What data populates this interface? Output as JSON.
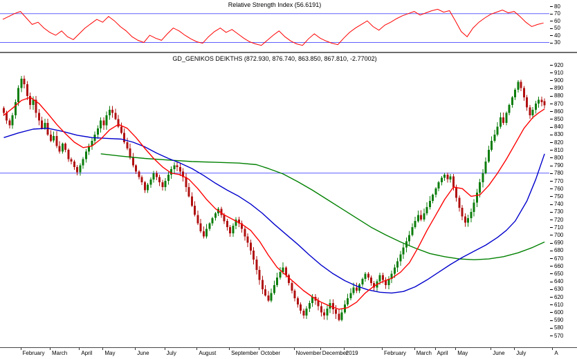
{
  "chart_data": [
    {
      "type": "line",
      "name": "rsi",
      "indicator": "Relative Strength Index",
      "current_value": 56.6191,
      "title_display": "Relative Strength Index (56.6191)",
      "color": "#ff0000",
      "threshold_color": "#6060ff",
      "thresholds": [
        70,
        30
      ],
      "ylim": [
        20,
        85
      ],
      "y_ticks": [
        80,
        70,
        60,
        50,
        40,
        30
      ],
      "x_step": 2,
      "legend_position": "none",
      "grid": false,
      "values": [
        62,
        66,
        70,
        73,
        64,
        55,
        58,
        50,
        44,
        40,
        46,
        38,
        34,
        42,
        50,
        56,
        62,
        58,
        66,
        60,
        52,
        46,
        38,
        33,
        30,
        40,
        36,
        33,
        42,
        50,
        46,
        40,
        35,
        31,
        29,
        38,
        45,
        50,
        44,
        48,
        42,
        36,
        31,
        28,
        26,
        33,
        40,
        46,
        38,
        32,
        28,
        26,
        35,
        42,
        36,
        32,
        29,
        27,
        36,
        44,
        50,
        55,
        60,
        52,
        47,
        54,
        58,
        63,
        67,
        70,
        73,
        68,
        71,
        74,
        76,
        72,
        74,
        60,
        45,
        38,
        50,
        58,
        64,
        69,
        72,
        75,
        71,
        73,
        66,
        58,
        52,
        55,
        57
      ]
    },
    {
      "type": "candlestick",
      "name": "price",
      "symbol": "GD_GENIKOS DEIKTHS",
      "title_display": "GD_GENIKOS DEIKTHS (872.930, 876.740, 863.850, 867.810, -2.77002)",
      "last_open": 872.93,
      "last_high": 876.74,
      "last_low": 863.85,
      "last_close": 867.81,
      "last_change": -2.77002,
      "up_color": "#0b7d0b",
      "down_color": "#b01010",
      "hline": 780,
      "hline_color": "#5a5aff",
      "ylim": [
        570,
        920
      ],
      "y_tick_step": 10,
      "grid": false,
      "closes": [
        858,
        848,
        842,
        855,
        872,
        890,
        902,
        895,
        880,
        868,
        875,
        858,
        848,
        838,
        845,
        830,
        822,
        828,
        815,
        808,
        818,
        810,
        798,
        795,
        788,
        781,
        790,
        798,
        808,
        815,
        822,
        830,
        838,
        848,
        842,
        855,
        862,
        858,
        850,
        840,
        832,
        820,
        812,
        800,
        790,
        782,
        775,
        768,
        758,
        765,
        772,
        780,
        775,
        768,
        762,
        770,
        778,
        785,
        790,
        788,
        782,
        775,
        762,
        750,
        738,
        726,
        715,
        705,
        698,
        708,
        715,
        722,
        728,
        734,
        726,
        718,
        710,
        702,
        712,
        720,
        715,
        708,
        698,
        690,
        680,
        668,
        655,
        642,
        630,
        622,
        615,
        625,
        635,
        645,
        652,
        658,
        648,
        638,
        628,
        618,
        610,
        602,
        596,
        605,
        612,
        620,
        615,
        608,
        600,
        596,
        605,
        612,
        604,
        598,
        590,
        600,
        610,
        618,
        625,
        632,
        628,
        636,
        643,
        650,
        645,
        638,
        632,
        640,
        648,
        642,
        635,
        643,
        650,
        658,
        666,
        675,
        684,
        692,
        700,
        710,
        718,
        726,
        720,
        728,
        736,
        744,
        752,
        760,
        768,
        774,
        778,
        772,
        776,
        762,
        748,
        735,
        724,
        716,
        722,
        730,
        742,
        755,
        768,
        780,
        795,
        810,
        822,
        830,
        840,
        852,
        845,
        858,
        868,
        878,
        888,
        898,
        890,
        878,
        865,
        855,
        862,
        870,
        875,
        872,
        867.81
      ],
      "moving_averages": [
        {
          "name": "long-ma",
          "color": "#008000",
          "points": [
            33,
            805,
            40,
            802,
            48,
            799,
            56,
            797,
            64,
            795,
            72,
            794,
            80,
            793,
            86,
            791,
            90,
            786,
            95,
            779,
            100,
            769,
            105,
            758,
            110,
            746,
            115,
            734,
            120,
            722,
            125,
            710,
            130,
            700,
            135,
            691,
            140,
            683,
            145,
            676,
            150,
            672,
            155,
            669,
            160,
            668,
            165,
            669,
            170,
            672,
            175,
            677,
            180,
            684,
            184,
            691
          ]
        },
        {
          "name": "medium-ma",
          "color": "#0000cc",
          "points": [
            0,
            826,
            5,
            832,
            10,
            837,
            15,
            838,
            20,
            834,
            25,
            829,
            30,
            826,
            35,
            825,
            40,
            824,
            44,
            820,
            48,
            814,
            52,
            806,
            56,
            799,
            60,
            793,
            64,
            786,
            68,
            777,
            72,
            767,
            76,
            758,
            80,
            750,
            84,
            740,
            88,
            728,
            92,
            714,
            96,
            701,
            100,
            688,
            104,
            674,
            108,
            661,
            112,
            650,
            116,
            641,
            120,
            634,
            124,
            629,
            128,
            626,
            132,
            625,
            136,
            627,
            140,
            633,
            144,
            642,
            148,
            652,
            152,
            662,
            156,
            671,
            160,
            679,
            164,
            687,
            168,
            697,
            171,
            706,
            174,
            718,
            178,
            744,
            181,
            772,
            184,
            805
          ]
        },
        {
          "name": "short-ma",
          "color": "#ff0000",
          "points": [
            0,
            855,
            3,
            864,
            6,
            874,
            9,
            878,
            12,
            870,
            15,
            857,
            18,
            843,
            21,
            831,
            24,
            820,
            27,
            813,
            30,
            815,
            33,
            824,
            36,
            836,
            39,
            843,
            42,
            838,
            45,
            826,
            48,
            812,
            51,
            799,
            54,
            788,
            57,
            780,
            60,
            778,
            63,
            772,
            66,
            760,
            69,
            746,
            72,
            734,
            75,
            726,
            78,
            720,
            81,
            714,
            84,
            706,
            87,
            692,
            90,
            674,
            93,
            658,
            96,
            648,
            99,
            638,
            102,
            628,
            105,
            620,
            108,
            613,
            111,
            608,
            114,
            604,
            117,
            606,
            120,
            613,
            123,
            625,
            126,
            634,
            129,
            640,
            132,
            644,
            135,
            652,
            138,
            664,
            141,
            684,
            144,
            706,
            147,
            726,
            150,
            746,
            153,
            762,
            156,
            760,
            159,
            750,
            162,
            752,
            165,
            764,
            168,
            780,
            171,
            798,
            174,
            818,
            177,
            838,
            180,
            852,
            182,
            858,
            184,
            863
          ]
        }
      ],
      "x_labels": [
        [
          "February",
          6
        ],
        [
          "March",
          16
        ],
        [
          "April",
          26
        ],
        [
          "May",
          34
        ],
        [
          "June",
          45
        ],
        [
          "July",
          55
        ],
        [
          "August",
          66
        ],
        [
          "September",
          77
        ],
        [
          "October",
          87
        ],
        [
          "November",
          99
        ],
        [
          "December",
          108
        ],
        [
          "2019",
          116
        ],
        [
          "February",
          129
        ],
        [
          "March",
          140
        ],
        [
          "April",
          147
        ],
        [
          "May",
          154
        ],
        [
          "June",
          166
        ],
        [
          "July",
          174
        ],
        [
          "A",
          187
        ]
      ]
    }
  ]
}
